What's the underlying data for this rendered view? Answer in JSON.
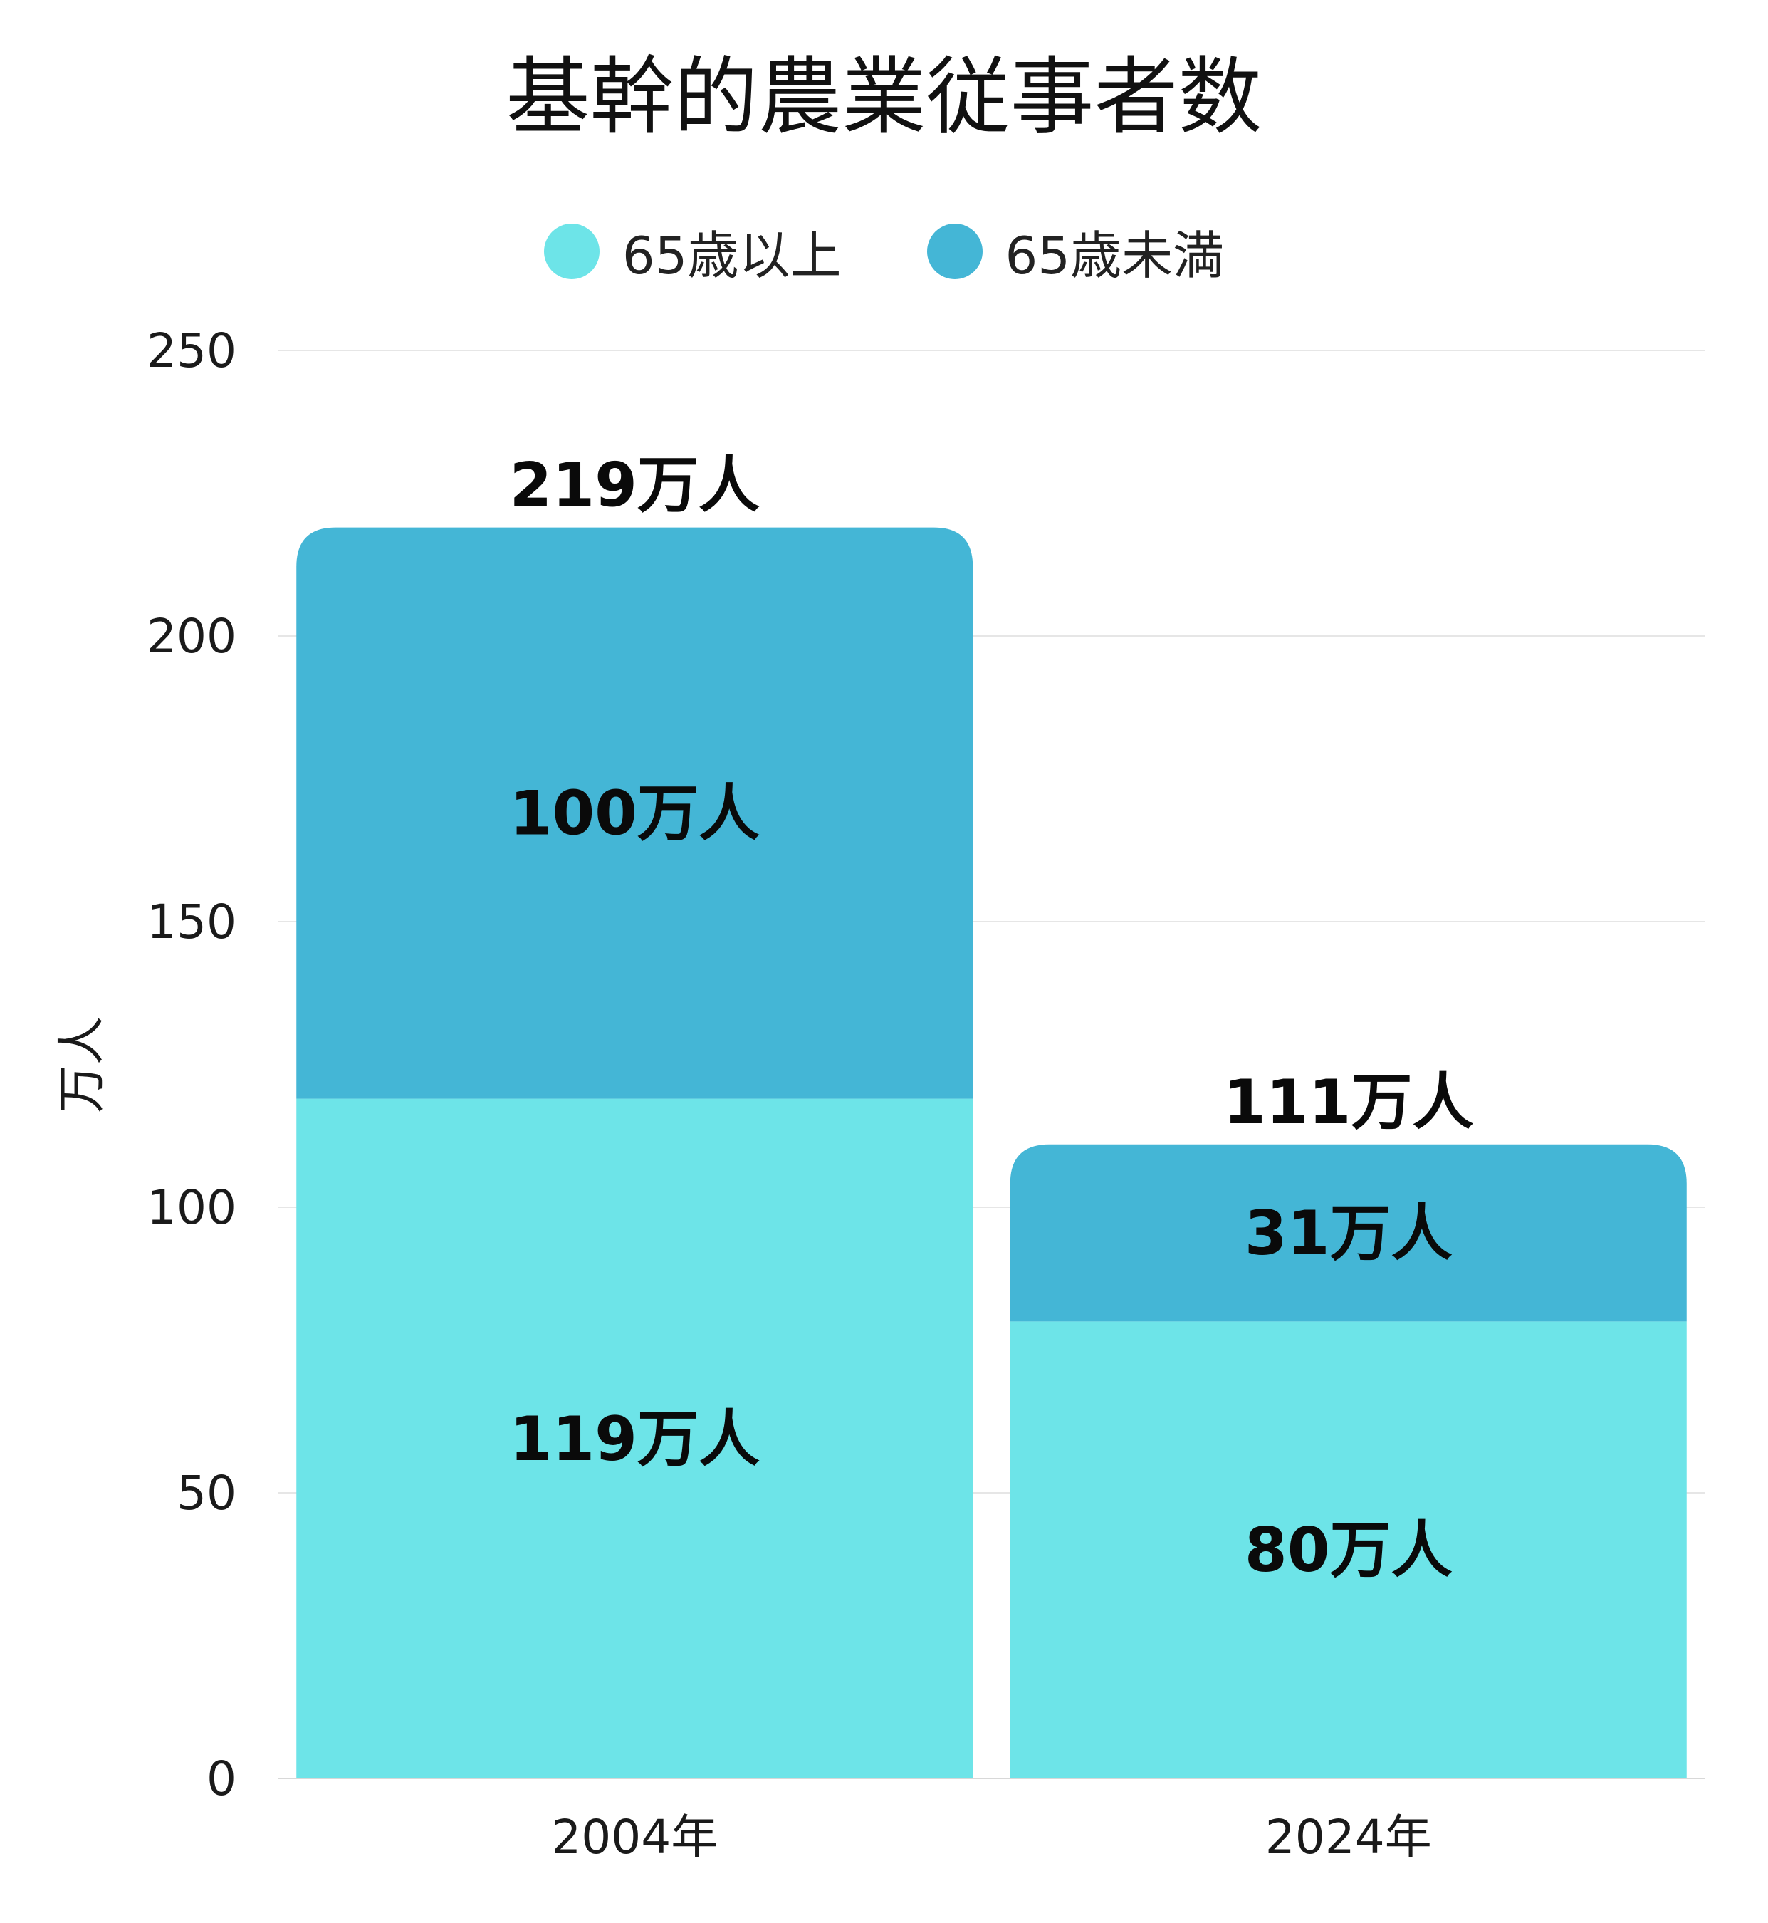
{
  "chart_data": {
    "type": "bar",
    "stacked": true,
    "title": "基幹的農業従事者数",
    "ylabel": "万人",
    "xlabel": "",
    "ylim": [
      0,
      250
    ],
    "yticks": [
      0,
      50,
      100,
      150,
      200,
      250
    ],
    "categories": [
      "2004年",
      "2024年"
    ],
    "series": [
      {
        "name": "65歳以上",
        "values": [
          119,
          80
        ],
        "labels": [
          "119万人",
          "80万人"
        ],
        "color": "#6de4e8"
      },
      {
        "name": "65歳未満",
        "values": [
          100,
          31
        ],
        "labels": [
          "100万人",
          "31万人"
        ],
        "color": "#44b6d6"
      }
    ],
    "totals": [
      219,
      111
    ],
    "total_labels": [
      "219万人",
      "111万人"
    ],
    "grid": true,
    "legend_position": "top"
  }
}
